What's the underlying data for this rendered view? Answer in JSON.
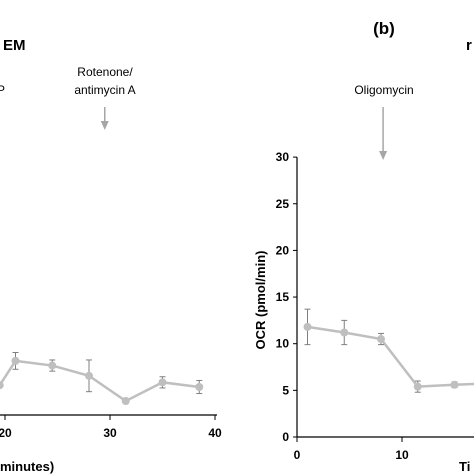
{
  "colors": {
    "series": "#bfbfbf",
    "arrow": "#a6a6a6",
    "axis": "#000000"
  },
  "chart_data": [
    {
      "type": "line",
      "panel_label": "",
      "title": "EM",
      "xlabel": "minutes)",
      "ylabel": "",
      "x_tick_labels": [
        "20",
        "30",
        "40"
      ],
      "x_ticks": [
        20,
        30,
        40
      ],
      "xlim": [
        20,
        40
      ],
      "ylim": [
        0,
        30
      ],
      "annotations": [
        {
          "label": "P",
          "x": null
        },
        {
          "label": "Rotenone/\nantimycin A",
          "x": 29.5
        }
      ],
      "series": [
        {
          "x": [
            19.5,
            21.0,
            24.5,
            28.0,
            31.5,
            35.0,
            38.5
          ],
          "y": [
            3.2,
            5.8,
            5.3,
            4.2,
            1.5,
            3.5,
            3.0
          ],
          "err": [
            0,
            0.9,
            0.6,
            1.7,
            0.2,
            0.6,
            0.7
          ]
        }
      ]
    },
    {
      "type": "line",
      "panel_label": "(b)",
      "title": "r",
      "xlabel": "Ti",
      "ylabel": "OCR (pmol/min)",
      "y_tick_labels": [
        "0",
        "5",
        "10",
        "15",
        "20",
        "25",
        "30"
      ],
      "y_ticks": [
        0,
        5,
        10,
        15,
        20,
        25,
        30
      ],
      "x_tick_labels": [
        "0",
        "10"
      ],
      "x_ticks": [
        0,
        10
      ],
      "ylim": [
        0,
        30
      ],
      "annotations": [
        {
          "label": "Oligomycin",
          "x": 8.2
        }
      ],
      "series": [
        {
          "x": [
            1.0,
            4.5,
            8.0,
            11.5,
            15.0,
            17.5
          ],
          "y": [
            11.8,
            11.2,
            10.5,
            5.4,
            5.6,
            5.7
          ],
          "err": [
            1.9,
            1.3,
            0.6,
            0.6,
            0.3,
            0
          ]
        }
      ]
    }
  ]
}
